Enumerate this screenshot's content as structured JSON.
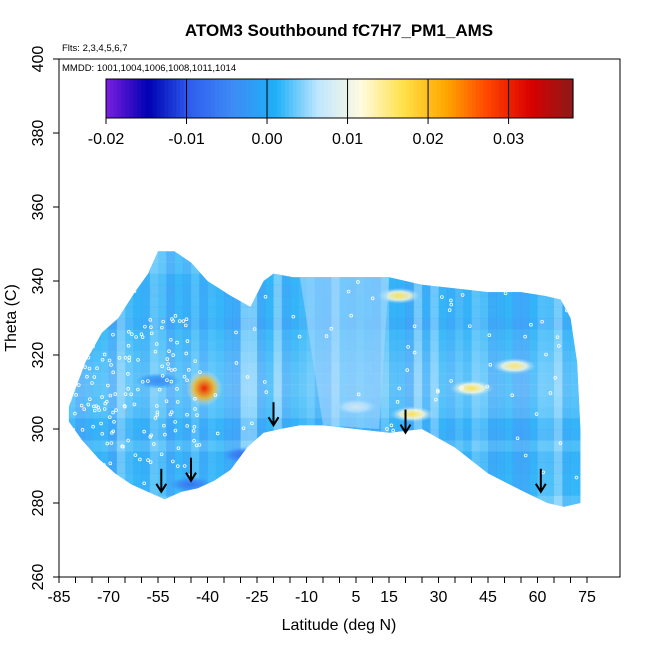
{
  "chart_data": {
    "type": "heatmap",
    "title": "ATOM3 Southbound fC7H7_PM1_AMS",
    "flights_note": "Flts: 2,3,4,5,6,7",
    "dates_note": "MMDD: 1001,1004,1006,1008,1011,1014",
    "xlabel": "Latitude (deg N)",
    "ylabel": "Theta (C)",
    "xlim": [
      -85,
      85
    ],
    "ylim": [
      260,
      400
    ],
    "x_ticks": [
      -85,
      -70,
      -55,
      -40,
      -25,
      -10,
      5,
      15,
      30,
      45,
      60,
      75
    ],
    "x_tick_labels": [
      "-85",
      "-70",
      "-55",
      "-40",
      "-25",
      "-10",
      "5",
      "15",
      "30",
      "45",
      "60",
      "75"
    ],
    "x_minor_step": 5,
    "y_ticks": [
      260,
      280,
      300,
      320,
      340,
      360,
      380,
      400
    ],
    "y_tick_labels": [
      "260",
      "280",
      "300",
      "320",
      "340",
      "360",
      "380",
      "400"
    ],
    "colorbar": {
      "range": [
        -0.02,
        0.038
      ],
      "tick_values": [
        -0.02,
        -0.01,
        0.0,
        0.01,
        0.02,
        0.03
      ],
      "tick_labels": [
        "-0.02",
        "-0.01",
        "0.00",
        "0.01",
        "0.02",
        "0.03"
      ],
      "colors": [
        "#7b1fe0",
        "#0000b3",
        "#2f5ff0",
        "#3d8cf5",
        "#1fb0f7",
        "#bfe6ff",
        "#fffbe0",
        "#ffe14a",
        "#ffa700",
        "#ff4400",
        "#d90000",
        "#8b1a1a"
      ]
    },
    "field_upper_boundary": [
      [
        -82,
        306
      ],
      [
        -77,
        318
      ],
      [
        -72,
        326
      ],
      [
        -67,
        330
      ],
      [
        -62,
        337
      ],
      [
        -58,
        342
      ],
      [
        -55,
        348
      ],
      [
        -50,
        348
      ],
      [
        -45,
        345
      ],
      [
        -40,
        340
      ],
      [
        -33,
        336
      ],
      [
        -27,
        333
      ],
      [
        -23,
        340
      ],
      [
        -20,
        342
      ],
      [
        -14,
        341
      ],
      [
        -5,
        341
      ],
      [
        5,
        341
      ],
      [
        15,
        341
      ],
      [
        25,
        339
      ],
      [
        35,
        338
      ],
      [
        45,
        337
      ],
      [
        55,
        337
      ],
      [
        62,
        336
      ],
      [
        67,
        335
      ],
      [
        70,
        330
      ],
      [
        72,
        318
      ],
      [
        73,
        300
      ],
      [
        73,
        280
      ]
    ],
    "field_lower_boundary": [
      [
        73,
        280
      ],
      [
        68,
        279
      ],
      [
        63,
        280
      ],
      [
        56,
        283
      ],
      [
        45,
        288
      ],
      [
        35,
        295
      ],
      [
        25,
        300
      ],
      [
        15,
        299
      ],
      [
        5,
        300
      ],
      [
        -5,
        301
      ],
      [
        -12,
        301
      ],
      [
        -18,
        300
      ],
      [
        -23,
        299
      ],
      [
        -28,
        295
      ],
      [
        -33,
        289
      ],
      [
        -38,
        286
      ],
      [
        -43,
        284
      ],
      [
        -48,
        283
      ],
      [
        -53,
        281
      ],
      [
        -58,
        283
      ],
      [
        -63,
        285
      ],
      [
        -68,
        288
      ],
      [
        -73,
        292
      ],
      [
        -78,
        297
      ],
      [
        -82,
        302
      ]
    ],
    "highlights": [
      {
        "lat": -41,
        "theta": 311,
        "value": 0.03
      },
      {
        "lat": 22,
        "theta": 304,
        "value": 0.017
      },
      {
        "lat": 40,
        "theta": 311,
        "value": 0.017
      },
      {
        "lat": 53,
        "theta": 317,
        "value": 0.016
      },
      {
        "lat": 18,
        "theta": 336,
        "value": 0.017
      },
      {
        "lat": 5,
        "theta": 306,
        "value": 0.011
      },
      {
        "lat": -29,
        "theta": 293,
        "value": -0.008
      },
      {
        "lat": -45,
        "theta": 285,
        "value": -0.007
      },
      {
        "lat": -55,
        "theta": 313,
        "value": -0.004
      }
    ],
    "arrows": [
      {
        "lat": -54,
        "theta": 286
      },
      {
        "lat": -45,
        "theta": 289
      },
      {
        "lat": -20,
        "theta": 304
      },
      {
        "lat": 20,
        "theta": 302
      },
      {
        "lat": 61,
        "theta": 286
      }
    ]
  }
}
